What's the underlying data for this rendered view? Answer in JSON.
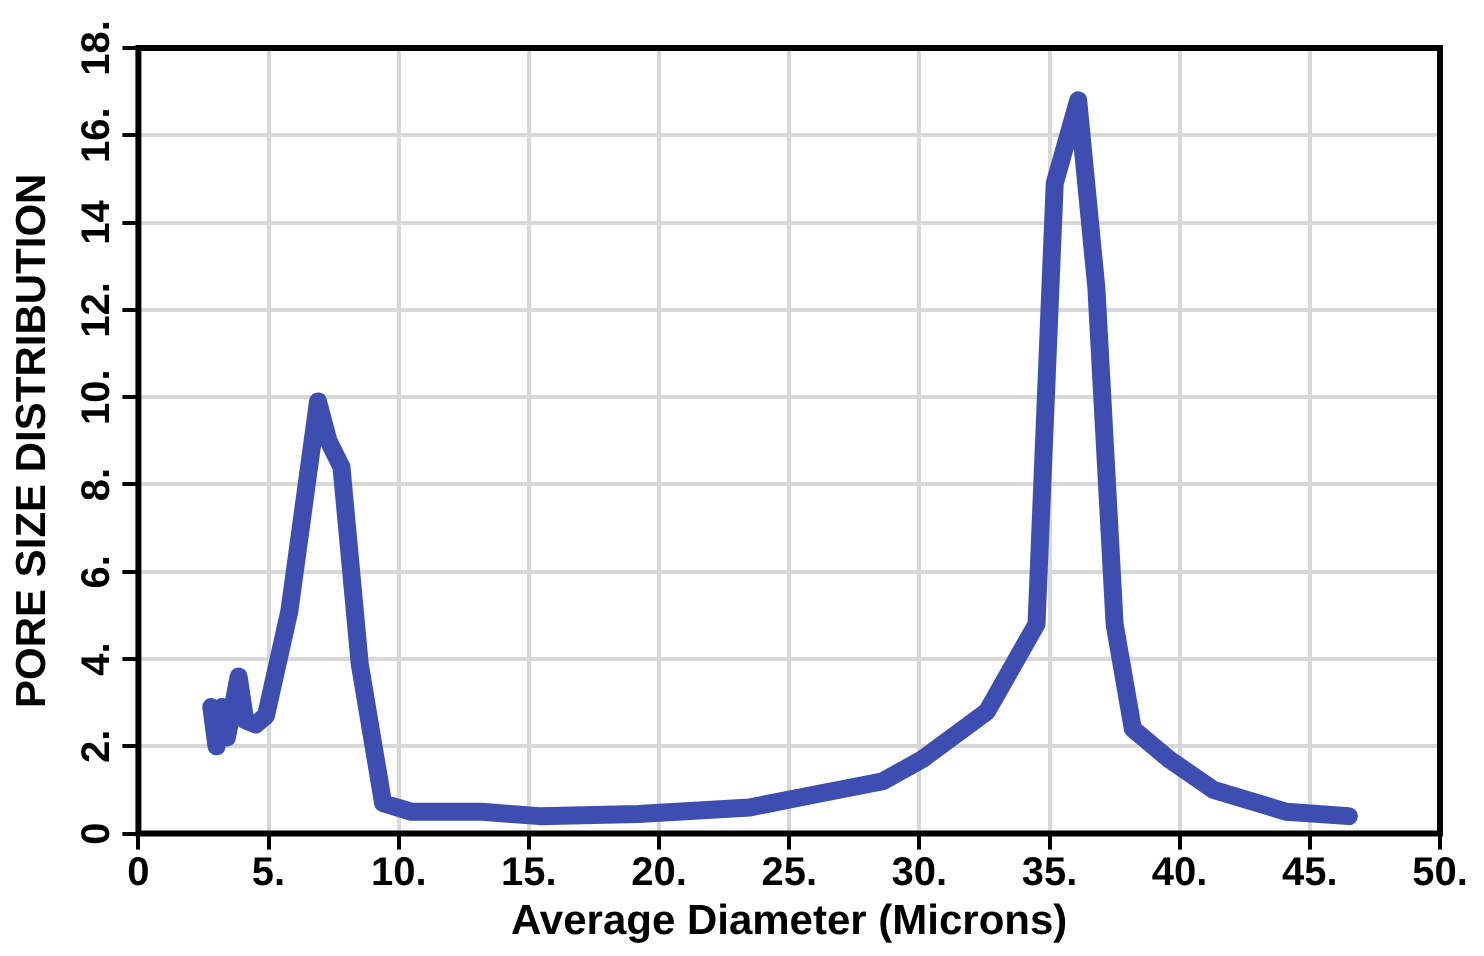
{
  "chart_data": {
    "type": "line",
    "xlabel": "Average Diameter (Microns)",
    "ylabel": "PORE SIZE DISTRIBUTION",
    "xlim": [
      0,
      50
    ],
    "xticks": [
      0,
      {
        "value": 5,
        "label": "5."
      },
      {
        "value": 10,
        "label": "10."
      },
      {
        "value": 15,
        "label": "15."
      },
      {
        "value": 20,
        "label": "20."
      },
      {
        "value": 25,
        "label": "25."
      },
      {
        "value": 30,
        "label": "30."
      },
      {
        "value": 35,
        "label": "35."
      },
      {
        "value": 40,
        "label": "40."
      },
      {
        "value": 45,
        "label": "45."
      },
      {
        "value": 50,
        "label": "50."
      }
    ],
    "ylim": [
      0,
      18
    ],
    "yticks": [
      0,
      {
        "value": 2,
        "label": "2."
      },
      {
        "value": 4,
        "label": "4."
      },
      {
        "value": 6,
        "label": "6."
      },
      {
        "value": 8,
        "label": "8."
      },
      {
        "value": 10,
        "label": "10."
      },
      {
        "value": 12,
        "label": "12."
      },
      14,
      {
        "value": 16,
        "label": "16."
      },
      {
        "value": 18,
        "label": "18."
      }
    ],
    "grid": true,
    "marker": "none",
    "line_style": "solid",
    "legend": false,
    "series": [
      {
        "color": "#3d4eb0",
        "x": [
          2.8,
          3.0,
          3.2,
          3.4,
          3.85,
          4.1,
          4.5,
          4.9,
          5.8,
          6.9,
          7.3,
          7.8,
          8.5,
          9.4,
          10.5,
          13.2,
          15.4,
          19.2,
          23.5,
          25.6,
          28.6,
          30.1,
          32.6,
          34.5,
          35.2,
          36.1,
          36.8,
          37.5,
          38.2,
          39.6,
          41.3,
          44.1,
          46.5
        ],
        "values": [
          2.9,
          2.0,
          2.9,
          2.2,
          3.6,
          2.6,
          2.5,
          2.7,
          5.1,
          9.9,
          9.0,
          8.4,
          3.9,
          0.7,
          0.5,
          0.5,
          0.4,
          0.45,
          0.6,
          0.85,
          1.2,
          1.7,
          2.8,
          4.8,
          14.9,
          16.8,
          12.5,
          4.8,
          2.4,
          1.7,
          1.0,
          0.5,
          0.4
        ]
      }
    ]
  }
}
